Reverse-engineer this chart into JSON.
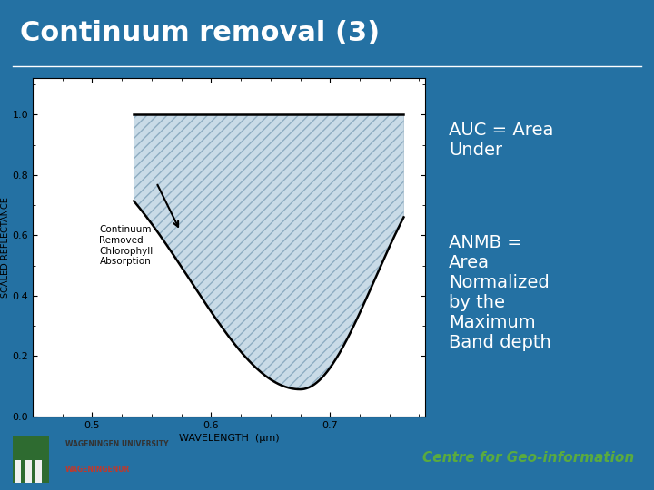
{
  "title": "Continuum removal (3)",
  "header_color": "#1e5e82",
  "slide_bg": "#2471a3",
  "xlabel": "WAVELENGTH  (μm)",
  "ylabel": "SCALED REFLECTANCE",
  "xlim": [
    0.45,
    0.78
  ],
  "ylim": [
    0.0,
    1.12
  ],
  "xticks": [
    0.5,
    0.6,
    0.7
  ],
  "yticks": [
    0.0,
    0.2,
    0.4,
    0.6,
    0.8,
    1.0
  ],
  "legend_label": "Continuum\nRemoved\nChlorophyll\nAbsorption",
  "auc_text": "AUC = Area\nUnder",
  "anmb_text": "ANMB =\nArea\nNormalized\nby the\nMaximum\nBand depth",
  "footer_text": "Centre for Geo-information",
  "footer_color": "#5aab3f",
  "box_bg": "#1e5e82",
  "box_text_color": "#ffffff",
  "line_color": "#000000",
  "fill_color": "#b8cfe0",
  "fill_hatch": "///",
  "title_color": "#ffffff"
}
